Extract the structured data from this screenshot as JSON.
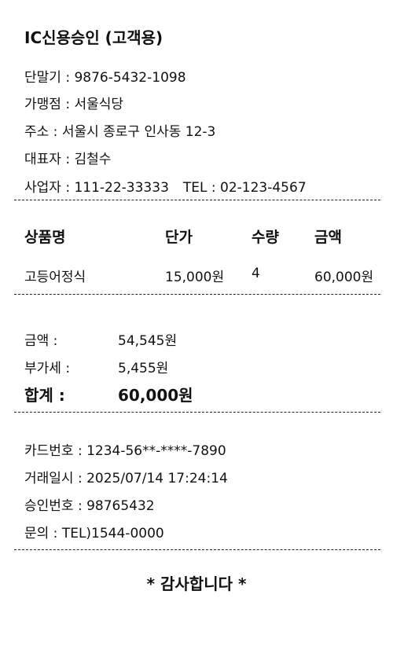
{
  "title": "IC신용승인 (고객용)",
  "merchant": {
    "terminal": "단말기 : 9876-5432-1098",
    "store": "가맹점 : 서울식당",
    "address": "주소 : 서울시 종로구 인사동 12-3",
    "owner": "대표자 : 김철수",
    "business_no": "사업자 : 111-22-33333",
    "tel": "TEL : 02-123-4567"
  },
  "table": {
    "headers": [
      "상품명",
      "단가",
      "수량",
      "금액"
    ],
    "rows": [
      [
        "고등어정식",
        "15,000원",
        "4",
        "60,000원"
      ]
    ]
  },
  "totals": {
    "amount_label": "금액 :",
    "amount_value": "54,545원",
    "vat_label": "부가세 :",
    "vat_value": "5,455원",
    "total_label": "합계 :",
    "total_value": "60,000원"
  },
  "payment": {
    "card_no": "카드번호 : 1234-56**-****-7890",
    "datetime": "거래일시 : 2025/07/14 17:24:14",
    "approval_no": "승인번호 : 98765432",
    "inquiry": "문의 : TEL)1544-0000"
  },
  "footer": "* 감사합니다 *"
}
